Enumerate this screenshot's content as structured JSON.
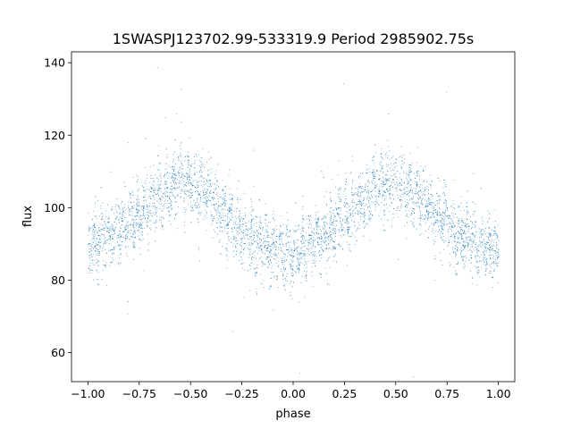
{
  "chart_data": {
    "type": "scatter",
    "title": "1SWASPJ123702.99-533319.9 Period 2985902.75s",
    "xlabel": "phase",
    "ylabel": "flux",
    "xlim": [
      -1.08,
      1.08
    ],
    "ylim": [
      52,
      143
    ],
    "xticks": [
      -1.0,
      -0.75,
      -0.5,
      -0.25,
      0.0,
      0.25,
      0.5,
      0.75,
      1.0
    ],
    "xtick_labels": [
      "−1.00",
      "−0.75",
      "−0.50",
      "−0.25",
      "0.00",
      "0.25",
      "0.50",
      "0.75",
      "1.00"
    ],
    "yticks": [
      60,
      80,
      100,
      120,
      140
    ],
    "ytick_labels": [
      "60",
      "80",
      "100",
      "120",
      "140"
    ],
    "grid": false,
    "marker_color": "#1f77b4",
    "series": [
      {
        "description": "folded light curve, sinusoidal trend with peak near phase -0.55/0.45 and trough near 0.0/1.0",
        "trend": {
          "x": [
            -1.0,
            -0.9,
            -0.8,
            -0.7,
            -0.6,
            -0.55,
            -0.5,
            -0.4,
            -0.3,
            -0.2,
            -0.1,
            0.0,
            0.1,
            0.2,
            0.3,
            0.4,
            0.45,
            0.5,
            0.6,
            0.7,
            0.8,
            0.9,
            1.0
          ],
          "y": [
            90,
            92,
            96,
            101,
            106,
            108,
            107,
            103,
            96,
            91,
            88,
            88,
            90,
            95,
            100,
            105,
            107,
            107,
            104,
            98,
            93,
            89,
            88
          ]
        },
        "scatter_spread": 6,
        "n_points": 5000
      }
    ]
  }
}
